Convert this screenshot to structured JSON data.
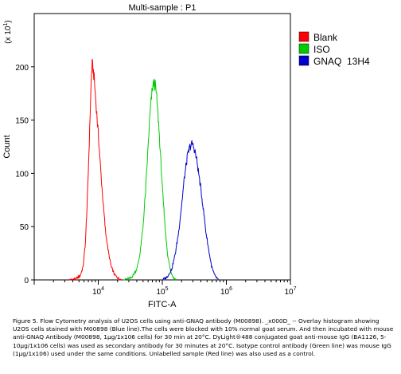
{
  "chart_data": {
    "type": "histogram",
    "title": "Multi-sample : P1",
    "xlabel": "FITC-A",
    "ylabel": "Count",
    "y_multiplier_label": "(x 10^1)",
    "x_scale": "log",
    "xlim": [
      1000,
      10000000
    ],
    "ylim": [
      0,
      250
    ],
    "y_ticks": [
      0,
      50,
      100,
      150,
      200
    ],
    "x_tick_labels": [
      "10^4",
      "10^5",
      "10^6",
      "10^7"
    ],
    "x_tick_values": [
      10000,
      100000,
      1000000,
      10000000
    ],
    "legend_position": "right",
    "series": [
      {
        "name": "Blank",
        "color": "#ff0000",
        "curve": [
          [
            3500,
            0
          ],
          [
            4500,
            1
          ],
          [
            5200,
            4
          ],
          [
            5800,
            12
          ],
          [
            6300,
            35
          ],
          [
            6800,
            80
          ],
          [
            7200,
            125
          ],
          [
            7500,
            160
          ],
          [
            7800,
            190
          ],
          [
            8000,
            203
          ],
          [
            8300,
            198
          ],
          [
            8600,
            190
          ],
          [
            9000,
            175
          ],
          [
            9500,
            155
          ],
          [
            10200,
            130
          ],
          [
            11000,
            100
          ],
          [
            12000,
            70
          ],
          [
            13000,
            45
          ],
          [
            14500,
            25
          ],
          [
            16000,
            12
          ],
          [
            18000,
            5
          ],
          [
            20000,
            2
          ],
          [
            23000,
            0
          ]
        ]
      },
      {
        "name": "ISO",
        "color": "#00cc00",
        "curve": [
          [
            25000,
            0
          ],
          [
            33000,
            2
          ],
          [
            40000,
            10
          ],
          [
            45000,
            25
          ],
          [
            50000,
            50
          ],
          [
            55000,
            85
          ],
          [
            60000,
            125
          ],
          [
            65000,
            160
          ],
          [
            70000,
            180
          ],
          [
            74000,
            185
          ],
          [
            78000,
            182
          ],
          [
            82000,
            170
          ],
          [
            88000,
            145
          ],
          [
            95000,
            110
          ],
          [
            103000,
            75
          ],
          [
            112000,
            45
          ],
          [
            122000,
            22
          ],
          [
            135000,
            8
          ],
          [
            150000,
            2
          ],
          [
            165000,
            0
          ]
        ]
      },
      {
        "name": "GNAQ  13H4",
        "color": "#0000cc",
        "curve": [
          [
            100000,
            0
          ],
          [
            120000,
            3
          ],
          [
            140000,
            10
          ],
          [
            160000,
            25
          ],
          [
            180000,
            45
          ],
          [
            200000,
            70
          ],
          [
            220000,
            95
          ],
          [
            245000,
            115
          ],
          [
            270000,
            125
          ],
          [
            295000,
            128
          ],
          [
            320000,
            122
          ],
          [
            345000,
            112
          ],
          [
            370000,
            100
          ],
          [
            400000,
            85
          ],
          [
            440000,
            65
          ],
          [
            480000,
            45
          ],
          [
            530000,
            28
          ],
          [
            590000,
            12
          ],
          [
            660000,
            4
          ],
          [
            750000,
            0
          ]
        ]
      }
    ]
  },
  "caption": "Figure 5. Flow Cytometry analysis of U2OS cells using anti-GNAQ antibody (M00898). _x000D_ -- Overlay histogram showing U2OS cells stained with M00898 (Blue line).The cells were blocked with 10% normal goat serum. And then incubated with mouse anti-GNAQ Antibody (M00898, 1µg/1x106 cells) for 30 min at 20°C. DyLight®488 conjugated goat anti-mouse IgG (BA1126, 5-10µg/1x106 cells) was used as secondary antibody for 30 minutes at 20°C. Isotype control antibody (Green line) was mouse IgG (1µg/1x106) used under the same conditions. Unlabelled sample (Red line) was also used as a control."
}
